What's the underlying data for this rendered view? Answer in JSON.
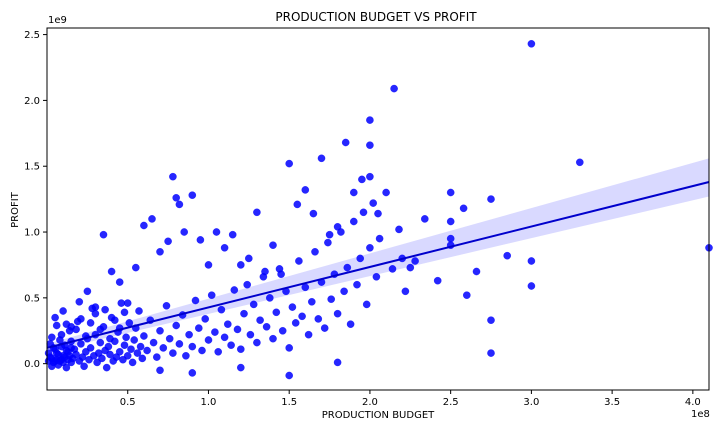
{
  "chart_data": {
    "type": "scatter",
    "title": "PRODUCTION BUDGET VS PROFIT",
    "xlabel": "PRODUCTION BUDGET",
    "ylabel": "PROFIT",
    "x_scale_label": "1e8",
    "y_scale_label": "1e9",
    "xlim": [
      0.0,
      4.1
    ],
    "ylim": [
      -0.2,
      2.55
    ],
    "x_ticks": [
      0.5,
      1.0,
      1.5,
      2.0,
      2.5,
      3.0,
      3.5,
      4.0
    ],
    "x_tick_labels": [
      "0.5",
      "1.0",
      "1.5",
      "2.0",
      "2.5",
      "3.0",
      "3.5",
      "4.0"
    ],
    "y_ticks": [
      0.0,
      0.5,
      1.0,
      1.5,
      2.0,
      2.5
    ],
    "y_tick_labels": [
      "0.0",
      "0.5",
      "1.0",
      "1.5",
      "2.0",
      "2.5"
    ],
    "grid": false,
    "legend": "none",
    "colors": {
      "points": "#0000ff",
      "regression_line": "#0000cc",
      "confidence_band": "#ccccff"
    },
    "regression": {
      "x": [
        0.0,
        4.1
      ],
      "y": [
        0.12,
        1.38
      ],
      "ci_lower": [
        0.09,
        1.27
      ],
      "ci_upper": [
        0.15,
        1.56
      ]
    },
    "points": [
      [
        0.02,
        0.05
      ],
      [
        0.03,
        -0.02
      ],
      [
        0.04,
        0.12
      ],
      [
        0.05,
        0.02
      ],
      [
        0.06,
        0.08
      ],
      [
        0.07,
        -0.01
      ],
      [
        0.08,
        0.18
      ],
      [
        0.09,
        0.03
      ],
      [
        0.1,
        0.06
      ],
      [
        0.11,
        0.14
      ],
      [
        0.12,
        -0.03
      ],
      [
        0.13,
        0.09
      ],
      [
        0.14,
        0.25
      ],
      [
        0.15,
        0.01
      ],
      [
        0.16,
        0.04
      ],
      [
        0.17,
        0.11
      ],
      [
        0.18,
        0.07
      ],
      [
        0.19,
        0.32
      ],
      [
        0.2,
        0.02
      ],
      [
        0.21,
        0.15
      ],
      [
        0.22,
        0.05
      ],
      [
        0.23,
        -0.02
      ],
      [
        0.24,
        0.09
      ],
      [
        0.25,
        0.19
      ],
      [
        0.26,
        0.03
      ],
      [
        0.27,
        0.12
      ],
      [
        0.28,
        0.42
      ],
      [
        0.29,
        0.06
      ],
      [
        0.3,
        0.22
      ],
      [
        0.31,
        0.01
      ],
      [
        0.32,
        0.08
      ],
      [
        0.33,
        0.16
      ],
      [
        0.34,
        0.04
      ],
      [
        0.35,
        0.28
      ],
      [
        0.36,
        0.1
      ],
      [
        0.37,
        -0.03
      ],
      [
        0.38,
        0.13
      ],
      [
        0.39,
        0.07
      ],
      [
        0.4,
        0.35
      ],
      [
        0.41,
        0.02
      ],
      [
        0.42,
        0.17
      ],
      [
        0.43,
        0.05
      ],
      [
        0.44,
        0.24
      ],
      [
        0.45,
        0.09
      ],
      [
        0.46,
        0.46
      ],
      [
        0.47,
        0.03
      ],
      [
        0.48,
        0.14
      ],
      [
        0.49,
        0.2
      ],
      [
        0.5,
        0.06
      ],
      [
        0.51,
        0.31
      ],
      [
        0.52,
        0.11
      ],
      [
        0.53,
        0.01
      ],
      [
        0.54,
        0.18
      ],
      [
        0.55,
        0.27
      ],
      [
        0.56,
        0.08
      ],
      [
        0.57,
        0.4
      ],
      [
        0.58,
        0.13
      ],
      [
        0.59,
        0.04
      ],
      [
        0.6,
        0.21
      ],
      [
        0.62,
        0.1
      ],
      [
        0.64,
        0.33
      ],
      [
        0.66,
        0.16
      ],
      [
        0.68,
        0.05
      ],
      [
        0.7,
        0.25
      ],
      [
        0.72,
        0.12
      ],
      [
        0.74,
        0.44
      ],
      [
        0.76,
        0.19
      ],
      [
        0.78,
        0.08
      ],
      [
        0.8,
        0.29
      ],
      [
        0.82,
        0.15
      ],
      [
        0.84,
        0.37
      ],
      [
        0.86,
        0.06
      ],
      [
        0.88,
        0.22
      ],
      [
        0.9,
        0.13
      ],
      [
        0.92,
        0.48
      ],
      [
        0.94,
        0.27
      ],
      [
        0.96,
        0.1
      ],
      [
        0.98,
        0.34
      ],
      [
        1.0,
        0.18
      ],
      [
        1.02,
        0.52
      ],
      [
        1.04,
        0.24
      ],
      [
        1.06,
        0.09
      ],
      [
        1.08,
        0.41
      ],
      [
        1.1,
        0.2
      ],
      [
        1.12,
        0.3
      ],
      [
        1.14,
        0.14
      ],
      [
        1.16,
        0.56
      ],
      [
        1.18,
        0.26
      ],
      [
        1.2,
        0.11
      ],
      [
        1.22,
        0.38
      ],
      [
        1.24,
        0.6
      ],
      [
        1.26,
        0.22
      ],
      [
        1.28,
        0.45
      ],
      [
        1.3,
        0.16
      ],
      [
        1.32,
        0.33
      ],
      [
        1.34,
        0.66
      ],
      [
        1.36,
        0.28
      ],
      [
        1.38,
        0.5
      ],
      [
        1.4,
        0.19
      ],
      [
        1.42,
        0.39
      ],
      [
        1.44,
        0.72
      ],
      [
        1.46,
        0.25
      ],
      [
        1.48,
        0.55
      ],
      [
        1.5,
        0.12
      ],
      [
        1.52,
        0.43
      ],
      [
        1.54,
        0.31
      ],
      [
        1.56,
        0.78
      ],
      [
        1.58,
        0.36
      ],
      [
        1.6,
        0.58
      ],
      [
        1.62,
        0.22
      ],
      [
        1.64,
        0.47
      ],
      [
        1.66,
        0.85
      ],
      [
        1.68,
        0.34
      ],
      [
        1.7,
        0.62
      ],
      [
        1.72,
        0.27
      ],
      [
        1.74,
        0.92
      ],
      [
        1.76,
        0.49
      ],
      [
        1.78,
        0.68
      ],
      [
        1.8,
        0.38
      ],
      [
        1.82,
        1.0
      ],
      [
        1.84,
        0.55
      ],
      [
        1.86,
        0.73
      ],
      [
        1.88,
        0.3
      ],
      [
        1.9,
        1.08
      ],
      [
        1.92,
        0.6
      ],
      [
        1.94,
        0.8
      ],
      [
        1.96,
        1.15
      ],
      [
        1.98,
        0.45
      ],
      [
        2.0,
        0.88
      ],
      [
        2.02,
        1.22
      ],
      [
        2.04,
        0.66
      ],
      [
        2.06,
        0.95
      ],
      [
        2.1,
        1.3
      ],
      [
        2.14,
        0.72
      ],
      [
        2.18,
        1.02
      ],
      [
        2.22,
        0.55
      ],
      [
        2.28,
        0.78
      ],
      [
        2.34,
        1.1
      ],
      [
        2.42,
        0.63
      ],
      [
        2.5,
        0.9
      ],
      [
        2.58,
        1.18
      ],
      [
        2.66,
        0.7
      ],
      [
        2.75,
        1.25
      ],
      [
        2.85,
        0.82
      ],
      [
        0.05,
        0.35
      ],
      [
        0.1,
        0.4
      ],
      [
        0.15,
        0.28
      ],
      [
        0.2,
        0.47
      ],
      [
        0.25,
        0.55
      ],
      [
        0.3,
        0.43
      ],
      [
        0.35,
        0.98
      ],
      [
        0.4,
        0.7
      ],
      [
        0.45,
        0.62
      ],
      [
        0.5,
        0.46
      ],
      [
        0.55,
        0.73
      ],
      [
        0.6,
        1.05
      ],
      [
        0.65,
        1.1
      ],
      [
        0.7,
        0.85
      ],
      [
        0.75,
        0.93
      ],
      [
        0.78,
        1.42
      ],
      [
        0.8,
        1.26
      ],
      [
        0.82,
        1.21
      ],
      [
        0.85,
        1.0
      ],
      [
        0.9,
        1.28
      ],
      [
        0.95,
        0.94
      ],
      [
        1.0,
        0.75
      ],
      [
        1.05,
        1.0
      ],
      [
        1.1,
        0.88
      ],
      [
        1.15,
        0.98
      ],
      [
        1.2,
        0.75
      ],
      [
        1.25,
        0.8
      ],
      [
        1.3,
        1.15
      ],
      [
        1.35,
        0.7
      ],
      [
        1.4,
        0.9
      ],
      [
        1.45,
        0.68
      ],
      [
        1.5,
        1.52
      ],
      [
        1.55,
        1.21
      ],
      [
        1.6,
        1.32
      ],
      [
        1.65,
        1.14
      ],
      [
        1.7,
        1.56
      ],
      [
        1.75,
        0.98
      ],
      [
        1.8,
        1.04
      ],
      [
        1.85,
        1.68
      ],
      [
        1.9,
        1.3
      ],
      [
        1.95,
        1.4
      ],
      [
        2.0,
        1.85
      ],
      [
        2.0,
        1.66
      ],
      [
        2.0,
        1.42
      ],
      [
        2.05,
        1.14
      ],
      [
        2.15,
        2.09
      ],
      [
        2.2,
        0.8
      ],
      [
        2.25,
        0.73
      ],
      [
        2.5,
        1.3
      ],
      [
        2.5,
        1.08
      ],
      [
        2.5,
        0.95
      ],
      [
        2.6,
        0.52
      ],
      [
        2.75,
        0.33
      ],
      [
        2.75,
        0.08
      ],
      [
        3.0,
        2.43
      ],
      [
        3.0,
        0.78
      ],
      [
        3.0,
        0.59
      ],
      [
        3.3,
        1.53
      ],
      [
        4.1,
        0.88
      ],
      [
        1.5,
        -0.09
      ],
      [
        0.9,
        -0.07
      ],
      [
        1.2,
        -0.03
      ],
      [
        0.7,
        -0.05
      ],
      [
        1.8,
        0.01
      ],
      [
        0.03,
        0.2
      ],
      [
        0.06,
        0.29
      ],
      [
        0.09,
        0.22
      ],
      [
        0.12,
        0.3
      ],
      [
        0.15,
        0.17
      ],
      [
        0.18,
        0.26
      ],
      [
        0.21,
        0.34
      ],
      [
        0.24,
        0.21
      ],
      [
        0.27,
        0.31
      ],
      [
        0.3,
        0.38
      ],
      [
        0.33,
        0.26
      ],
      [
        0.36,
        0.41
      ],
      [
        0.39,
        0.19
      ],
      [
        0.42,
        0.33
      ],
      [
        0.45,
        0.27
      ],
      [
        0.48,
        0.39
      ],
      [
        0.01,
        0.02
      ],
      [
        0.01,
        0.08
      ],
      [
        0.02,
        0.15
      ],
      [
        0.03,
        0.04
      ],
      [
        0.04,
        0.01
      ],
      [
        0.05,
        0.11
      ],
      [
        0.06,
        0.03
      ],
      [
        0.07,
        0.07
      ],
      [
        0.08,
        0.02
      ],
      [
        0.09,
        0.13
      ],
      [
        0.1,
        0.01
      ],
      [
        0.11,
        0.05
      ],
      [
        0.12,
        0.1
      ],
      [
        0.13,
        0.03
      ],
      [
        0.14,
        0.06
      ],
      [
        0.15,
        0.12
      ]
    ]
  }
}
